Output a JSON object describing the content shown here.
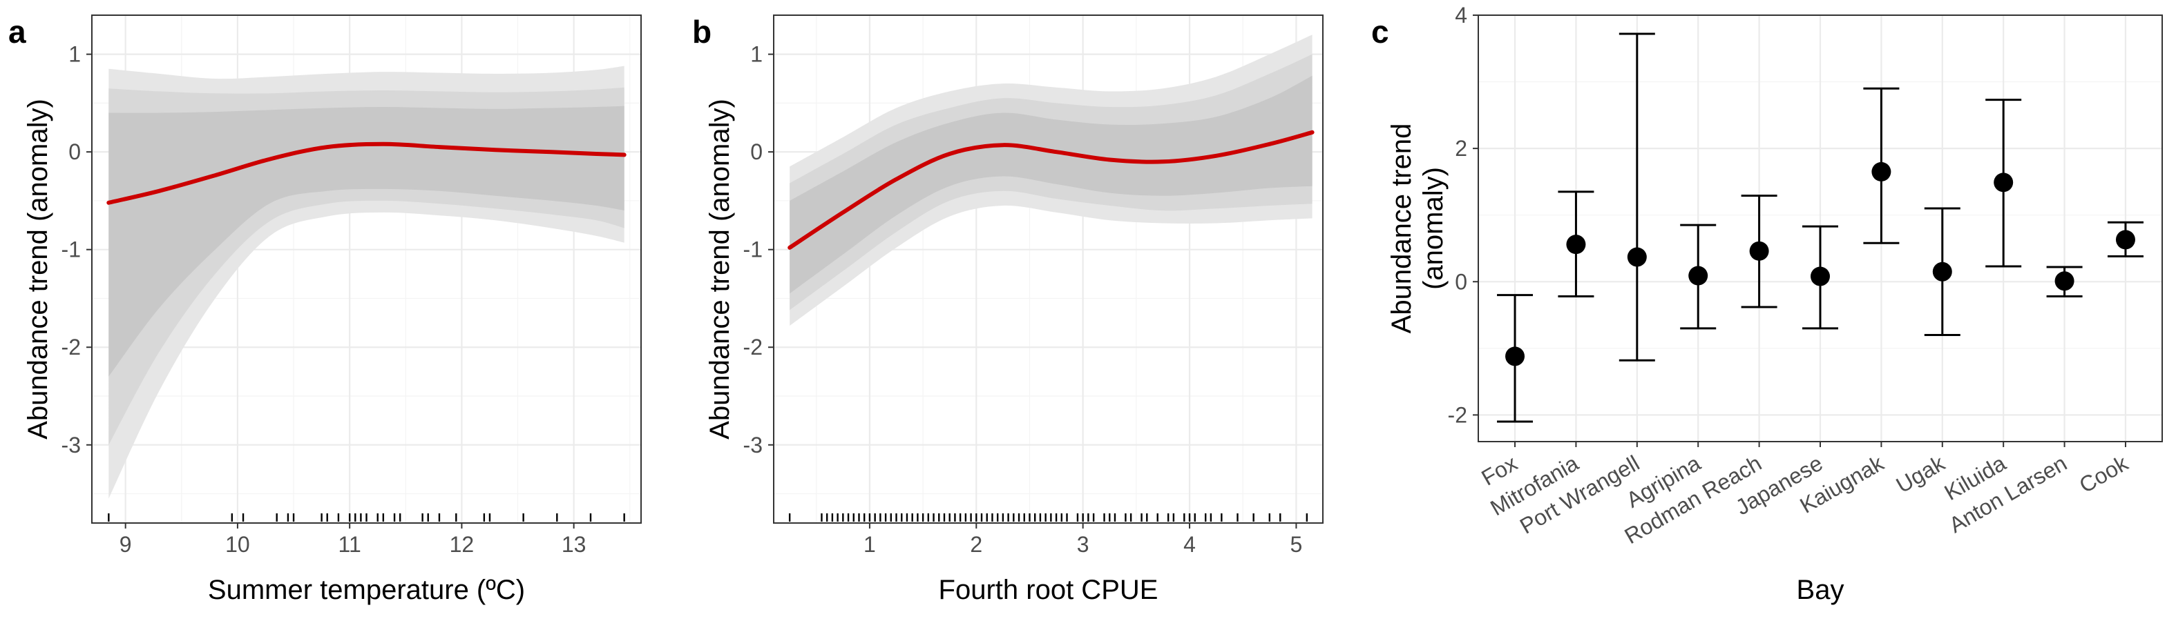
{
  "chart_data": [
    {
      "panel": "a",
      "type": "line",
      "xlabel": "Summer temperature (ºC)",
      "ylabel": "Abundance trend (anomaly)",
      "xlim": [
        8.7,
        13.6
      ],
      "ylim": [
        -3.8,
        1.4
      ],
      "xticks": [
        9,
        10,
        11,
        12,
        13
      ],
      "yticks": [
        -3,
        -2,
        -1,
        0,
        1
      ],
      "grid": true,
      "colors": {
        "line": "#cc0000",
        "band_inner": "#c8c8c8",
        "band_mid": "#d8d8d8",
        "band_outer": "#e6e6e6"
      },
      "series": [
        {
          "x": [
            8.85,
            9.3,
            9.8,
            10.3,
            10.8,
            11.3,
            11.8,
            12.3,
            12.8,
            13.2,
            13.45
          ],
          "y": [
            -0.52,
            -0.4,
            -0.24,
            -0.07,
            0.05,
            0.08,
            0.05,
            0.02,
            0.0,
            -0.02,
            -0.03
          ],
          "band_inner": [
            [
              -2.3,
              0.4
            ],
            [
              -1.6,
              0.4
            ],
            [
              -1.0,
              0.41
            ],
            [
              -0.52,
              0.43
            ],
            [
              -0.4,
              0.45
            ],
            [
              -0.38,
              0.46
            ],
            [
              -0.4,
              0.45
            ],
            [
              -0.45,
              0.44
            ],
            [
              -0.5,
              0.45
            ],
            [
              -0.55,
              0.46
            ],
            [
              -0.6,
              0.47
            ]
          ],
          "band_mid": [
            [
              -3.0,
              0.65
            ],
            [
              -2.05,
              0.62
            ],
            [
              -1.25,
              0.6
            ],
            [
              -0.7,
              0.6
            ],
            [
              -0.53,
              0.62
            ],
            [
              -0.5,
              0.63
            ],
            [
              -0.53,
              0.62
            ],
            [
              -0.58,
              0.61
            ],
            [
              -0.64,
              0.62
            ],
            [
              -0.7,
              0.64
            ],
            [
              -0.78,
              0.66
            ]
          ],
          "band_outer": [
            [
              -3.55,
              0.85
            ],
            [
              -2.45,
              0.8
            ],
            [
              -1.5,
              0.75
            ],
            [
              -0.85,
              0.77
            ],
            [
              -0.66,
              0.8
            ],
            [
              -0.62,
              0.82
            ],
            [
              -0.65,
              0.81
            ],
            [
              -0.7,
              0.8
            ],
            [
              -0.78,
              0.81
            ],
            [
              -0.86,
              0.84
            ],
            [
              -0.93,
              0.88
            ]
          ]
        }
      ],
      "rug": [
        8.85,
        9.95,
        10.05,
        10.35,
        10.45,
        10.5,
        10.75,
        10.8,
        10.9,
        11.0,
        11.05,
        11.1,
        11.15,
        11.25,
        11.3,
        11.4,
        11.45,
        11.65,
        11.7,
        11.8,
        11.95,
        12.2,
        12.25,
        12.55,
        12.85,
        13.15,
        13.45
      ]
    },
    {
      "panel": "b",
      "type": "line",
      "xlabel": "Fourth root CPUE",
      "ylabel": "Abundance trend (anomaly)",
      "xlim": [
        0.1,
        5.25
      ],
      "ylim": [
        -3.8,
        1.4
      ],
      "xticks": [
        1,
        2,
        3,
        4,
        5
      ],
      "yticks": [
        -3,
        -2,
        -1,
        0,
        1
      ],
      "grid": true,
      "colors": {
        "line": "#cc0000",
        "band_inner": "#c8c8c8",
        "band_mid": "#d8d8d8",
        "band_outer": "#e6e6e6"
      },
      "series": [
        {
          "x": [
            0.25,
            0.75,
            1.25,
            1.75,
            2.25,
            2.75,
            3.25,
            3.75,
            4.25,
            4.75,
            5.15
          ],
          "y": [
            -0.98,
            -0.62,
            -0.28,
            -0.02,
            0.07,
            0.0,
            -0.08,
            -0.1,
            -0.04,
            0.08,
            0.2
          ],
          "band_inner": [
            [
              -1.45,
              -0.5
            ],
            [
              -1.05,
              -0.2
            ],
            [
              -0.65,
              0.1
            ],
            [
              -0.35,
              0.3
            ],
            [
              -0.25,
              0.4
            ],
            [
              -0.33,
              0.33
            ],
            [
              -0.42,
              0.28
            ],
            [
              -0.45,
              0.29
            ],
            [
              -0.42,
              0.36
            ],
            [
              -0.37,
              0.55
            ],
            [
              -0.35,
              0.78
            ]
          ],
          "band_mid": [
            [
              -1.62,
              -0.32
            ],
            [
              -1.22,
              -0.02
            ],
            [
              -0.82,
              0.28
            ],
            [
              -0.5,
              0.45
            ],
            [
              -0.4,
              0.55
            ],
            [
              -0.48,
              0.5
            ],
            [
              -0.55,
              0.46
            ],
            [
              -0.6,
              0.48
            ],
            [
              -0.58,
              0.58
            ],
            [
              -0.55,
              0.8
            ],
            [
              -0.53,
              1.0
            ]
          ],
          "band_outer": [
            [
              -1.78,
              -0.15
            ],
            [
              -1.38,
              0.15
            ],
            [
              -0.98,
              0.45
            ],
            [
              -0.66,
              0.62
            ],
            [
              -0.55,
              0.7
            ],
            [
              -0.62,
              0.66
            ],
            [
              -0.7,
              0.62
            ],
            [
              -0.73,
              0.65
            ],
            [
              -0.73,
              0.77
            ],
            [
              -0.7,
              1.0
            ],
            [
              -0.68,
              1.2
            ]
          ]
        }
      ],
      "rug": [
        0.25,
        0.55,
        0.6,
        0.65,
        0.7,
        0.75,
        0.8,
        0.85,
        0.9,
        0.95,
        1.0,
        1.05,
        1.1,
        1.15,
        1.2,
        1.25,
        1.3,
        1.35,
        1.4,
        1.45,
        1.5,
        1.55,
        1.6,
        1.65,
        1.7,
        1.75,
        1.8,
        1.85,
        1.9,
        1.95,
        2.0,
        2.05,
        2.1,
        2.15,
        2.2,
        2.25,
        2.3,
        2.35,
        2.4,
        2.45,
        2.5,
        2.55,
        2.6,
        2.65,
        2.7,
        2.75,
        2.8,
        2.85,
        2.95,
        3.0,
        3.05,
        3.1,
        3.2,
        3.25,
        3.3,
        3.4,
        3.45,
        3.55,
        3.6,
        3.7,
        3.8,
        3.85,
        3.95,
        4.0,
        4.05,
        4.15,
        4.2,
        4.3,
        4.45,
        4.6,
        4.75,
        4.85,
        5.1
      ]
    },
    {
      "panel": "c",
      "type": "scatter",
      "xlabel": "Bay",
      "ylabel": "Abundance trend (anomaly)",
      "ylim": [
        -2.4,
        4.0
      ],
      "yticks": [
        -2,
        0,
        2,
        4
      ],
      "grid": true,
      "colors": {
        "point": "#000000",
        "errorbar": "#000000"
      },
      "categories": [
        "Fox",
        "Mitrofania",
        "Port Wrangell",
        "Agripina",
        "Rodman Reach",
        "Japanese",
        "Kaiugnak",
        "Ugak",
        "Kiluida",
        "Anton Larsen",
        "Cook"
      ],
      "values": [
        -1.12,
        0.56,
        0.37,
        0.09,
        0.46,
        0.08,
        1.65,
        0.15,
        1.49,
        0.01,
        0.63
      ],
      "lower": [
        -2.1,
        -0.22,
        -1.18,
        -0.7,
        -0.38,
        -0.7,
        0.58,
        -0.8,
        0.23,
        -0.22,
        0.38
      ],
      "upper": [
        -0.2,
        1.35,
        3.72,
        0.85,
        1.29,
        0.83,
        2.9,
        1.1,
        2.73,
        0.22,
        0.89
      ]
    }
  ]
}
